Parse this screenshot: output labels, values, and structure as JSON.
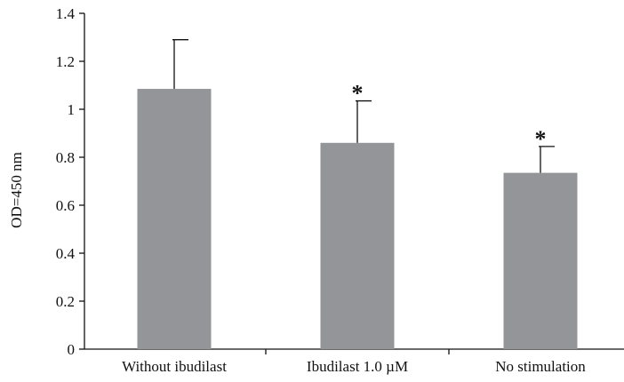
{
  "chart_data": {
    "type": "bar",
    "categories": [
      "Without ibudilast",
      "Ibudilast 1.0 µM",
      "No stimulation"
    ],
    "values": [
      1.085,
      0.86,
      0.735
    ],
    "error_upper": [
      1.29,
      1.035,
      0.845
    ],
    "annotations": [
      "",
      "*",
      "*"
    ],
    "ylabel": "OD=450 nm",
    "xlabel": "",
    "ylim": [
      0,
      1.4
    ],
    "yticks": [
      0,
      0.2,
      0.4,
      0.6,
      0.8,
      1,
      1.2,
      1.4
    ],
    "ytick_labels": [
      "0",
      "0.2",
      "0.4",
      "0.6",
      "0.8",
      "1",
      "1.2",
      "1.4"
    ],
    "grid": false,
    "bar_color": "#939598"
  }
}
